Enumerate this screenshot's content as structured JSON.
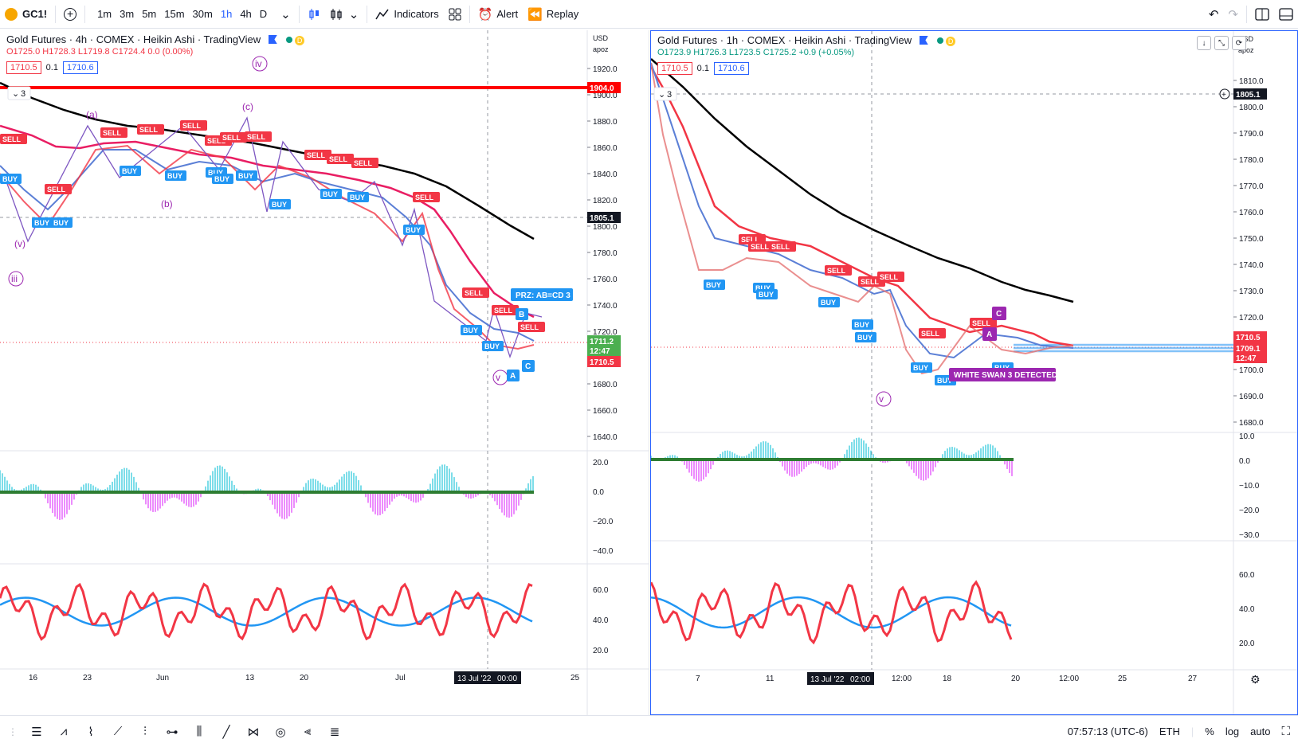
{
  "toolbar": {
    "symbol": "GC1!",
    "timeframes": [
      "1m",
      "3m",
      "5m",
      "15m",
      "30m",
      "1h",
      "4h",
      "D"
    ],
    "active_timeframe": "1h",
    "indicators_label": "Indicators",
    "alert_label": "Alert",
    "replay_label": "Replay"
  },
  "left_chart": {
    "title": "Gold Futures · 4h · COMEX · Heikin Ashi · TradingView",
    "ohlc": "O1725.0 H1728.3 L1719.8 C1724.4 0.0 (0.00%)",
    "input_a": "1710.5",
    "input_step": "0.1",
    "input_b": "1710.6",
    "currency": "USD",
    "scale_mode": "apoz",
    "price_ticks": [
      "1920.0",
      "1900.0",
      "1880.0",
      "1860.0",
      "1840.0",
      "1820.0",
      "1800.0",
      "1780.0",
      "1760.0",
      "1740.0",
      "1720.0",
      "1700.0",
      "1680.0",
      "1660.0",
      "1640.0"
    ],
    "price_labels": {
      "red_line": "1904.0",
      "crosshair": "1805.1",
      "current": "1711.2",
      "countdown": "12:47",
      "bid": "1710.5"
    },
    "osc_ticks": [
      "20.0",
      "0.0",
      "−20.0",
      "−40.0"
    ],
    "rsi_ticks": [
      "60.0",
      "40.0",
      "20.0"
    ],
    "time_ticks": [
      "16",
      "23",
      "Jun",
      "13",
      "20",
      "Jul",
      "25"
    ],
    "time_cursor": "13 Jul '22",
    "time_cursor_hour": "00:00",
    "wave_labels": [
      "(v)",
      "iii",
      "(a)",
      "(b)",
      "(c)",
      "iv",
      "v"
    ],
    "signals": {
      "sell": "SELL",
      "buy": "BUY"
    },
    "prz_label": "PRZ: AB=CD 3",
    "pattern_points": [
      "A",
      "B",
      "C"
    ],
    "drawing_count": "3"
  },
  "right_chart": {
    "title": "Gold Futures · 1h · COMEX · Heikin Ashi · TradingView",
    "ohlc": "O1723.9 H1726.3 L1723.5 C1725.2 +0.9 (+0.05%)",
    "input_a": "1710.5",
    "input_step": "0.1",
    "input_b": "1710.6",
    "currency": "USD",
    "scale_mode": "apoz",
    "price_ticks": [
      "1810.0",
      "1800.0",
      "1790.0",
      "1780.0",
      "1770.0",
      "1760.0",
      "1750.0",
      "1740.0",
      "1730.0",
      "1720.0",
      "1710.0",
      "1700.0",
      "1690.0",
      "1680.0"
    ],
    "price_labels": {
      "crosshair": "1805.1",
      "bid": "1710.5",
      "current": "1709.1",
      "countdown": "12:47"
    },
    "osc_ticks": [
      "10.0",
      "0.0",
      "−10.0",
      "−20.0",
      "−30.0"
    ],
    "rsi_ticks": [
      "60.0",
      "40.0",
      "20.0"
    ],
    "time_ticks": [
      "7",
      "11",
      "12:00",
      "18",
      "20",
      "12:00",
      "25",
      "27"
    ],
    "time_cursor": "13 Jul '22",
    "time_cursor_hour": "02:00",
    "wave_labels": [
      "v"
    ],
    "signals": {
      "sell": "SELL",
      "buy": "BUY"
    },
    "swan_label": "WHITE SWAN 3 DETECTED",
    "pattern_points": [
      "A",
      "C"
    ],
    "drawing_count": "3"
  },
  "bottombar": {
    "time": "07:57:13 (UTC-6)",
    "session": "ETH",
    "percent": "%",
    "log": "log",
    "auto": "auto"
  },
  "colors": {
    "sell": "#f23645",
    "buy": "#2196f3",
    "ma_black": "#000000",
    "ma_red": "#f23645",
    "ma_pink": "#e91e63",
    "ma_blue": "#5b7fd6",
    "pattern_purple": "#9c27b0",
    "accent": "#2962ff"
  }
}
